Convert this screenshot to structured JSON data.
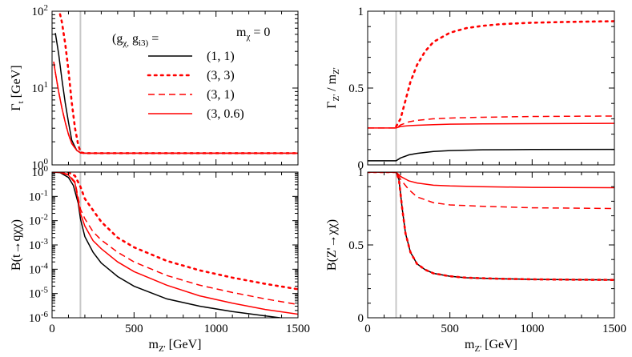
{
  "legend": {
    "title": "(g_χ, g_i3) =",
    "annotation": "m_χ = 0",
    "entries": [
      "(1, 1)",
      "(3, 3)",
      "(3, 1)",
      "(3, 0.6)"
    ]
  },
  "colors": {
    "black": "#000000",
    "red": "#ff0000",
    "marker": "#c8c8c8"
  },
  "chart_data": [
    {
      "type": "line",
      "ylabel": "Γ_t [GeV]",
      "xlabel": "",
      "xlim": [
        0,
        1500
      ],
      "ylim": [
        1,
        100
      ],
      "yscale": "log",
      "xticks": [
        0,
        500,
        1000,
        1500
      ],
      "yticks": [
        1,
        10,
        100
      ],
      "yticklabels": [
        "10^0",
        "10^1",
        "10^2"
      ],
      "show_x_tick_labels": false,
      "vline_x": 173,
      "series": [
        {
          "name": "(1, 1)",
          "color": "#000000",
          "dash": "solid",
          "x": [
            20,
            40,
            60,
            80,
            100,
            120,
            150,
            175,
            200,
            300,
            1500
          ],
          "y": [
            52,
            28,
            13,
            6.5,
            3.6,
            2.1,
            1.55,
            1.43,
            1.42,
            1.42,
            1.42
          ]
        },
        {
          "name": "(3, 3)",
          "color": "#ff0000",
          "dash": "dotted",
          "x": [
            40,
            60,
            80,
            100,
            120,
            140,
            160,
            175,
            200,
            300,
            1500
          ],
          "y": [
            110,
            72,
            38,
            17,
            6.5,
            3.0,
            1.8,
            1.45,
            1.42,
            1.42,
            1.42
          ]
        },
        {
          "name": "(3, 1)",
          "color": "#ff0000",
          "dash": "dashed",
          "x": [
            10,
            20,
            40,
            60,
            80,
            100,
            120,
            150,
            175,
            200,
            300,
            1500
          ],
          "y": [
            22,
            16,
            9,
            5.5,
            3.6,
            2.5,
            1.9,
            1.55,
            1.43,
            1.42,
            1.42,
            1.42
          ]
        },
        {
          "name": "(3, 0.6)",
          "color": "#ff0000",
          "dash": "solid",
          "x": [
            10,
            20,
            40,
            60,
            80,
            100,
            120,
            150,
            175,
            200,
            300,
            1500
          ],
          "y": [
            22,
            16,
            9,
            5.5,
            3.6,
            2.5,
            1.9,
            1.55,
            1.43,
            1.42,
            1.42,
            1.42
          ]
        }
      ]
    },
    {
      "type": "line",
      "ylabel": "Γ_Z' / m_Z'",
      "xlabel": "",
      "xlim": [
        0,
        1500
      ],
      "ylim": [
        0,
        1
      ],
      "yscale": "linear",
      "xticks": [
        0,
        500,
        1000,
        1500
      ],
      "yticks": [
        0,
        0.5,
        1
      ],
      "yticklabels": [
        "0",
        "0.5",
        "1"
      ],
      "show_x_tick_labels": false,
      "vline_x": 173,
      "series": [
        {
          "name": "(1, 1)",
          "color": "#000000",
          "dash": "solid",
          "x": [
            0,
            173,
            200,
            250,
            300,
            400,
            500,
            700,
            1000,
            1500
          ],
          "y": [
            0.027,
            0.027,
            0.045,
            0.065,
            0.075,
            0.087,
            0.093,
            0.098,
            0.1,
            0.101
          ]
        },
        {
          "name": "(3, 3)",
          "color": "#ff0000",
          "dash": "dotted",
          "x": [
            173,
            200,
            230,
            260,
            300,
            350,
            400,
            500,
            600,
            700,
            800,
            1000,
            1200,
            1500
          ],
          "y": [
            0.25,
            0.3,
            0.42,
            0.54,
            0.65,
            0.74,
            0.8,
            0.86,
            0.89,
            0.905,
            0.915,
            0.925,
            0.93,
            0.935
          ]
        },
        {
          "name": "(3, 1)",
          "color": "#ff0000",
          "dash": "dashed",
          "x": [
            0,
            173,
            200,
            250,
            300,
            400,
            500,
            700,
            1000,
            1500
          ],
          "y": [
            0.24,
            0.24,
            0.26,
            0.28,
            0.29,
            0.3,
            0.305,
            0.31,
            0.315,
            0.318
          ]
        },
        {
          "name": "(3, 0.6)",
          "color": "#ff0000",
          "dash": "solid",
          "x": [
            0,
            173,
            200,
            250,
            300,
            400,
            500,
            700,
            1000,
            1500
          ],
          "y": [
            0.24,
            0.24,
            0.25,
            0.255,
            0.258,
            0.262,
            0.265,
            0.267,
            0.268,
            0.27
          ]
        }
      ]
    },
    {
      "type": "line",
      "ylabel": "B(t→qχχ)",
      "xlabel": "m_Z' [GeV]",
      "xlim": [
        0,
        1500
      ],
      "ylim": [
        1e-06,
        1
      ],
      "yscale": "log",
      "xticks": [
        0,
        500,
        1000,
        1500
      ],
      "xticklabels": [
        "0",
        "500",
        "1000",
        "1500"
      ],
      "yticks": [
        1e-06,
        1e-05,
        0.0001,
        0.001,
        0.01,
        0.1,
        1
      ],
      "yticklabels": [
        "10^-6",
        "10^-5",
        "10^-4",
        "10^-3",
        "10^-2",
        "10^-1",
        "10^0"
      ],
      "show_x_tick_labels": true,
      "vline_x": 173,
      "series": [
        {
          "name": "(1, 1)",
          "color": "#000000",
          "dash": "solid",
          "x": [
            0,
            50,
            100,
            130,
            160,
            173,
            200,
            250,
            300,
            400,
            500,
            700,
            900,
            1100,
            1300,
            1500
          ],
          "y": [
            1.0,
            0.95,
            0.6,
            0.28,
            0.05,
            0.012,
            0.0022,
            0.0005,
            0.00018,
            5e-05,
            2e-05,
            6e-06,
            3e-06,
            1.8e-06,
            1.2e-06,
            8e-07
          ]
        },
        {
          "name": "(3, 3)",
          "color": "#ff0000",
          "dash": "dotted",
          "x": [
            60,
            100,
            140,
            173,
            200,
            300,
            400,
            500,
            700,
            900,
            1100,
            1300,
            1500
          ],
          "y": [
            1.0,
            0.97,
            0.7,
            0.25,
            0.08,
            0.009,
            0.002,
            0.0008,
            0.00022,
            9e-05,
            4.5e-05,
            2.5e-05,
            1.5e-05
          ]
        },
        {
          "name": "(3, 1)",
          "color": "#ff0000",
          "dash": "dashed",
          "x": [
            0,
            50,
            100,
            140,
            173,
            200,
            250,
            300,
            400,
            500,
            700,
            900,
            1100,
            1300,
            1500
          ],
          "y": [
            1.0,
            0.97,
            0.8,
            0.4,
            0.03,
            0.012,
            0.0035,
            0.0016,
            0.0005,
            0.0002,
            5.5e-05,
            2.2e-05,
            1.1e-05,
            6e-06,
            3.5e-06
          ]
        },
        {
          "name": "(3, 0.6)",
          "color": "#ff0000",
          "dash": "solid",
          "x": [
            0,
            50,
            100,
            140,
            173,
            200,
            250,
            300,
            400,
            500,
            700,
            900,
            1100,
            1300,
            1500
          ],
          "y": [
            1.0,
            0.97,
            0.75,
            0.35,
            0.02,
            0.006,
            0.0015,
            0.0007,
            0.0002,
            8e-05,
            2.2e-05,
            8e-06,
            4e-06,
            2.2e-06,
            1.4e-06
          ]
        }
      ]
    },
    {
      "type": "line",
      "ylabel": "B(Z'→χχ)",
      "xlabel": "m_Z' [GeV]",
      "xlim": [
        0,
        1500
      ],
      "ylim": [
        0,
        1
      ],
      "yscale": "linear",
      "xticks": [
        0,
        500,
        1000,
        1500
      ],
      "xticklabels": [
        "0",
        "500",
        "1000",
        "1500"
      ],
      "yticks": [
        0,
        0.5,
        1
      ],
      "yticklabels": [
        "0",
        "0.5",
        "1"
      ],
      "show_x_tick_labels": true,
      "vline_x": 173,
      "series": [
        {
          "name": "(1, 1)",
          "color": "#000000",
          "dash": "solid",
          "x": [
            0,
            173,
            190,
            210,
            230,
            260,
            300,
            350,
            400,
            500,
            600,
            800,
            1000,
            1200,
            1500
          ],
          "y": [
            1.0,
            1.0,
            0.95,
            0.75,
            0.58,
            0.45,
            0.37,
            0.33,
            0.305,
            0.285,
            0.275,
            0.268,
            0.264,
            0.262,
            0.26
          ]
        },
        {
          "name": "(3, 3)",
          "color": "#ff0000",
          "dash": "dotted",
          "x": [
            0,
            173,
            190,
            210,
            230,
            260,
            300,
            350,
            400,
            500,
            600,
            800,
            1000,
            1200,
            1500
          ],
          "y": [
            1.0,
            1.0,
            0.95,
            0.75,
            0.58,
            0.45,
            0.37,
            0.33,
            0.305,
            0.285,
            0.275,
            0.268,
            0.264,
            0.262,
            0.26
          ]
        },
        {
          "name": "(3, 1)",
          "color": "#ff0000",
          "dash": "dashed",
          "x": [
            0,
            173,
            200,
            250,
            300,
            400,
            500,
            700,
            1000,
            1500
          ],
          "y": [
            1.0,
            1.0,
            0.95,
            0.88,
            0.83,
            0.79,
            0.775,
            0.765,
            0.755,
            0.75
          ]
        },
        {
          "name": "(3, 0.6)",
          "color": "#ff0000",
          "dash": "solid",
          "x": [
            0,
            173,
            200,
            250,
            300,
            400,
            500,
            700,
            1000,
            1500
          ],
          "y": [
            1.0,
            1.0,
            0.97,
            0.94,
            0.925,
            0.91,
            0.905,
            0.9,
            0.895,
            0.893
          ]
        }
      ]
    }
  ]
}
